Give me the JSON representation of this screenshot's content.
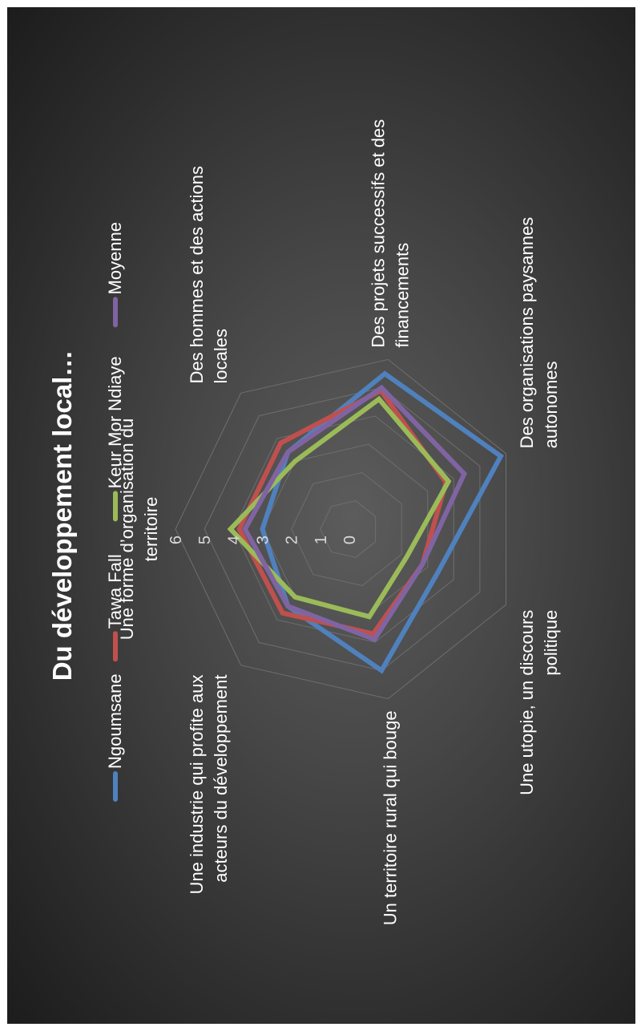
{
  "chart_data": {
    "type": "radar",
    "title": "Du développement local…",
    "categories": [
      "Une forme d’organisation du territoire",
      "Des hommes et des actions locales",
      "Des projets successifs et des financements",
      "Des organisations paysannes autonomes",
      "Une utopie, un discours politique",
      "Un territoire rural qui bouge",
      "Une industrie qui profite aux acteurs du développement"
    ],
    "category_lines": [
      [
        "Une forme d’organisation du",
        "territoire"
      ],
      [
        "Des hommes et des actions",
        "locales"
      ],
      [
        "Des projets successifs et des",
        "financements"
      ],
      [
        "Des organisations paysannes",
        "autonomes"
      ],
      [
        "Une utopie, un discours",
        "politique"
      ],
      [
        "Un territoire rural qui bouge"
      ],
      [
        "Une industrie qui profite aux",
        "acteurs du développement"
      ]
    ],
    "rmin": 0,
    "rmax": 6,
    "ticks": [
      0,
      1,
      2,
      3,
      4,
      5,
      6
    ],
    "grid": true,
    "legend_position": "top",
    "series": [
      {
        "name": "Ngoumsane",
        "color": "#4f81bd",
        "values": [
          3.0,
          3.4,
          5.5,
          5.8,
          3.4,
          5.0,
          3.4
        ]
      },
      {
        "name": "Tawa Fall",
        "color": "#c0504d",
        "values": [
          3.8,
          3.8,
          4.9,
          3.7,
          2.8,
          3.7,
          3.7
        ]
      },
      {
        "name": "Keur Mor Ndiaye",
        "color": "#9bbb59",
        "values": [
          4.1,
          3.0,
          4.6,
          3.8,
          2.2,
          3.1,
          3.0
        ]
      },
      {
        "name": "Moyenne",
        "color": "#8064a2",
        "values": [
          3.6,
          3.4,
          5.0,
          4.4,
          2.8,
          3.9,
          3.4
        ]
      }
    ]
  }
}
